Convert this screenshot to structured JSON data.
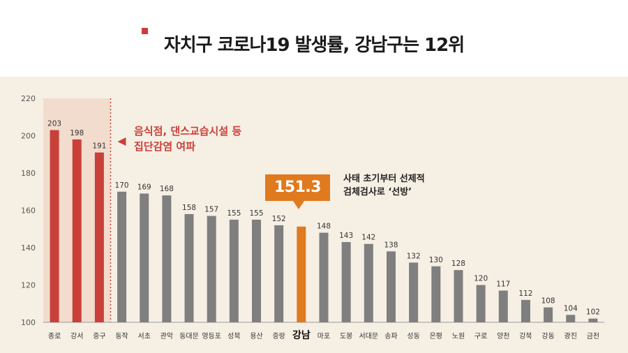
{
  "title": "자치구 코로나19 발생률, 강남구는 12위",
  "colors": {
    "highlight_red": "#c9403a",
    "highlight_band": "#f0d6c6",
    "gray_bar": "#7f7f7f",
    "gangnam_orange": "#e07a1f",
    "background": "#f6efe4"
  },
  "annotations": {
    "red_note": [
      "음식점, 댄스교습시설 등",
      "집단감염 여파"
    ],
    "gangnam_callout": "151.3",
    "gangnam_note": [
      "사태 초기부터 선제적",
      "검체검사로 ‘선방’"
    ]
  },
  "chart_data": {
    "type": "bar",
    "title": "자치구 코로나19 발생률, 강남구는 12위",
    "xlabel": "",
    "ylabel": "",
    "ylim": [
      100,
      220
    ],
    "yticks": [
      100,
      120,
      140,
      160,
      180,
      200,
      220
    ],
    "grid": false,
    "categories": [
      "종로",
      "강서",
      "중구",
      "동작",
      "서초",
      "관악",
      "동대문",
      "영등포",
      "성북",
      "용산",
      "중랑",
      "강남",
      "마포",
      "도봉",
      "서대문",
      "송파",
      "성동",
      "은평",
      "노원",
      "구로",
      "양천",
      "강북",
      "강동",
      "광진",
      "금천"
    ],
    "values": [
      203,
      198,
      191,
      170,
      169,
      168,
      158,
      157,
      155,
      155,
      152,
      151.3,
      148,
      143,
      142,
      138,
      132,
      130,
      128,
      120,
      117,
      112,
      108,
      104,
      102
    ],
    "value_labels": [
      "203",
      "198",
      "191",
      "170",
      "169",
      "168",
      "158",
      "157",
      "155",
      "155",
      "152",
      "",
      "148",
      "143",
      "142",
      "138",
      "132",
      "130",
      "128",
      "120",
      "117",
      "112",
      "108",
      "104",
      "102"
    ],
    "highlighted_red": [
      "종로",
      "강서",
      "중구"
    ],
    "highlighted_orange": [
      "강남"
    ]
  }
}
